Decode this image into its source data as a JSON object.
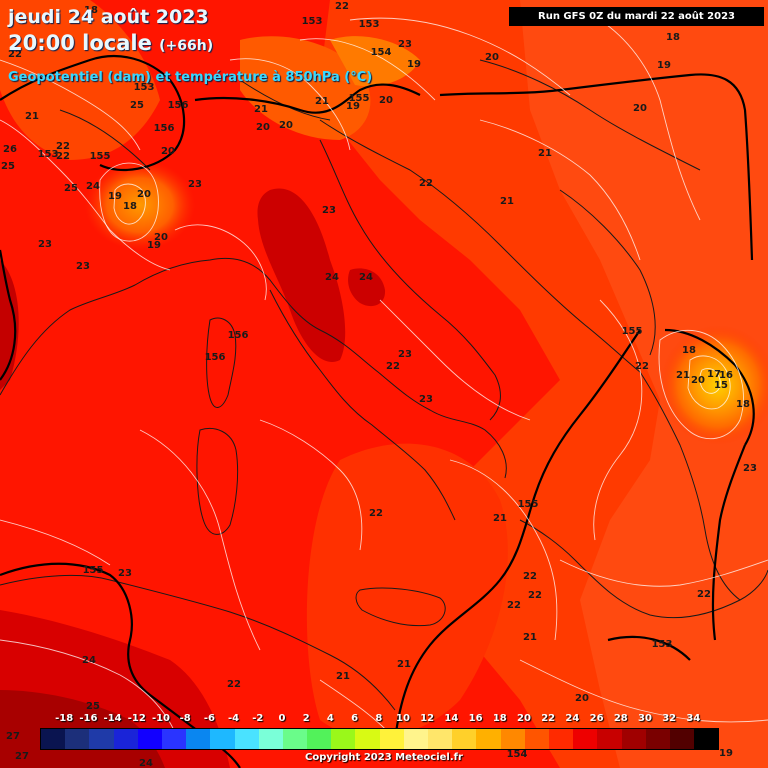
{
  "header": {
    "date": "jeudi 24 août 2023",
    "local_time": "20:00 locale",
    "lead": "(+66h)",
    "variable": "Geopotentiel (dam) et température à 850hPa (°C)"
  },
  "run_info": "Run GFS 0Z du mardi 22 août 2023",
  "colorbar": {
    "ticks": [
      "-18",
      "-16",
      "-14",
      "-12",
      "-10",
      "-8",
      "-6",
      "-4",
      "-2",
      "0",
      "2",
      "4",
      "6",
      "8",
      "10",
      "12",
      "14",
      "16",
      "18",
      "20",
      "22",
      "24",
      "26",
      "28",
      "30",
      "32",
      "34"
    ],
    "colors": [
      "#0a1450",
      "#1c2f7a",
      "#1f3aa8",
      "#1a24d8",
      "#1200ff",
      "#2a34ff",
      "#0a86f0",
      "#1eb8ff",
      "#4ae2ff",
      "#7affd8",
      "#6afc8a",
      "#52f25a",
      "#9af81a",
      "#d8fa14",
      "#fff23a",
      "#fff48c",
      "#ffe66a",
      "#ffd02a",
      "#ffb000",
      "#ff8800",
      "#ff5500",
      "#ff2a00",
      "#ee0000",
      "#c80000",
      "#a00000",
      "#7a0000",
      "#520000",
      "#000000"
    ]
  },
  "copyright": "Copyright 2023 Meteociel.fr",
  "labels": {
    "temperature": [
      {
        "text": "22",
        "lon": 342,
        "lat": 5
      },
      {
        "text": "23",
        "lon": 405,
        "lat": 43
      },
      {
        "text": "19",
        "lon": 414,
        "lat": 63
      },
      {
        "text": "20",
        "lon": 492,
        "lat": 56
      },
      {
        "text": "18",
        "lon": 673,
        "lat": 36
      },
      {
        "text": "19",
        "lon": 664,
        "lat": 64
      },
      {
        "text": "20",
        "lon": 640,
        "lat": 107
      },
      {
        "text": "21",
        "lon": 545,
        "lat": 152
      },
      {
        "text": "21",
        "lon": 507,
        "lat": 200
      },
      {
        "text": "22",
        "lon": 426,
        "lat": 182
      },
      {
        "text": "23",
        "lon": 329,
        "lat": 209
      },
      {
        "text": "24",
        "lon": 332,
        "lat": 276
      },
      {
        "text": "24",
        "lon": 366,
        "lat": 276
      },
      {
        "text": "23",
        "lon": 405,
        "lat": 353
      },
      {
        "text": "22",
        "lon": 393,
        "lat": 365
      },
      {
        "text": "23",
        "lon": 426,
        "lat": 398
      },
      {
        "text": "22",
        "lon": 642,
        "lat": 365
      },
      {
        "text": "18",
        "lon": 689,
        "lat": 349
      },
      {
        "text": "21",
        "lon": 683,
        "lat": 374
      },
      {
        "text": "20",
        "lon": 698,
        "lat": 379
      },
      {
        "text": "17",
        "lon": 714,
        "lat": 373
      },
      {
        "text": "16",
        "lon": 726,
        "lat": 374
      },
      {
        "text": "15",
        "lon": 721,
        "lat": 384
      },
      {
        "text": "18",
        "lon": 743,
        "lat": 403
      },
      {
        "text": "23",
        "lon": 750,
        "lat": 467
      },
      {
        "text": "22",
        "lon": 376,
        "lat": 512
      },
      {
        "text": "21",
        "lon": 500,
        "lat": 517
      },
      {
        "text": "23",
        "lon": 125,
        "lat": 572
      },
      {
        "text": "22",
        "lon": 530,
        "lat": 575
      },
      {
        "text": "22",
        "lon": 514,
        "lat": 604
      },
      {
        "text": "22",
        "lon": 535,
        "lat": 594
      },
      {
        "text": "22",
        "lon": 704,
        "lat": 593
      },
      {
        "text": "21",
        "lon": 530,
        "lat": 636
      },
      {
        "text": "21",
        "lon": 404,
        "lat": 663
      },
      {
        "text": "21",
        "lon": 343,
        "lat": 675
      },
      {
        "text": "22",
        "lon": 234,
        "lat": 683
      },
      {
        "text": "24",
        "lon": 89,
        "lat": 659
      },
      {
        "text": "25",
        "lon": 93,
        "lat": 705
      },
      {
        "text": "20",
        "lon": 582,
        "lat": 697
      },
      {
        "text": "19",
        "lon": 726,
        "lat": 752
      },
      {
        "text": "27",
        "lon": 13,
        "lat": 735
      },
      {
        "text": "27",
        "lon": 22,
        "lat": 755
      },
      {
        "text": "24",
        "lon": 146,
        "lat": 762
      },
      {
        "text": "23",
        "lon": 195,
        "lat": 183
      },
      {
        "text": "23",
        "lon": 45,
        "lat": 243
      },
      {
        "text": "23",
        "lon": 83,
        "lat": 265
      },
      {
        "text": "20",
        "lon": 161,
        "lat": 236
      },
      {
        "text": "19",
        "lon": 154,
        "lat": 244
      },
      {
        "text": "18",
        "lon": 130,
        "lat": 205
      },
      {
        "text": "19",
        "lon": 115,
        "lat": 195
      },
      {
        "text": "20",
        "lon": 144,
        "lat": 193
      },
      {
        "text": "24",
        "lon": 93,
        "lat": 185
      },
      {
        "text": "25",
        "lon": 71,
        "lat": 187
      },
      {
        "text": "22",
        "lon": 63,
        "lat": 145
      },
      {
        "text": "22",
        "lon": 63,
        "lat": 155
      },
      {
        "text": "25",
        "lon": 137,
        "lat": 104
      },
      {
        "text": "21",
        "lon": 32,
        "lat": 115
      },
      {
        "text": "26",
        "lon": 10,
        "lat": 148
      },
      {
        "text": "25",
        "lon": 8,
        "lat": 165
      },
      {
        "text": "20",
        "lon": 168,
        "lat": 150
      },
      {
        "text": "21",
        "lon": 261,
        "lat": 108
      },
      {
        "text": "20",
        "lon": 263,
        "lat": 126
      },
      {
        "text": "20",
        "lon": 286,
        "lat": 124
      },
      {
        "text": "19",
        "lon": 353,
        "lat": 105
      },
      {
        "text": "20",
        "lon": 386,
        "lat": 99
      },
      {
        "text": "21",
        "lon": 322,
        "lat": 100
      },
      {
        "text": "18",
        "lon": 91,
        "lat": 9
      },
      {
        "text": "22",
        "lon": 15,
        "lat": 53
      }
    ],
    "geopotential": [
      {
        "text": "153",
        "lon": 312,
        "lat": 20
      },
      {
        "text": "153",
        "lon": 369,
        "lat": 23
      },
      {
        "text": "154",
        "lon": 381,
        "lat": 51
      },
      {
        "text": "155",
        "lon": 359,
        "lat": 97
      },
      {
        "text": "156",
        "lon": 178,
        "lat": 104
      },
      {
        "text": "156",
        "lon": 164,
        "lat": 127
      },
      {
        "text": "155",
        "lon": 100,
        "lat": 155
      },
      {
        "text": "153",
        "lon": 48,
        "lat": 153
      },
      {
        "text": "153",
        "lon": 144,
        "lat": 86
      },
      {
        "text": "156",
        "lon": 238,
        "lat": 334
      },
      {
        "text": "156",
        "lon": 215,
        "lat": 356
      },
      {
        "text": "155",
        "lon": 632,
        "lat": 330
      },
      {
        "text": "155",
        "lon": 528,
        "lat": 503
      },
      {
        "text": "155",
        "lon": 93,
        "lat": 569
      },
      {
        "text": "153",
        "lon": 662,
        "lat": 643
      },
      {
        "text": "154",
        "lon": 517,
        "lat": 753
      }
    ]
  }
}
